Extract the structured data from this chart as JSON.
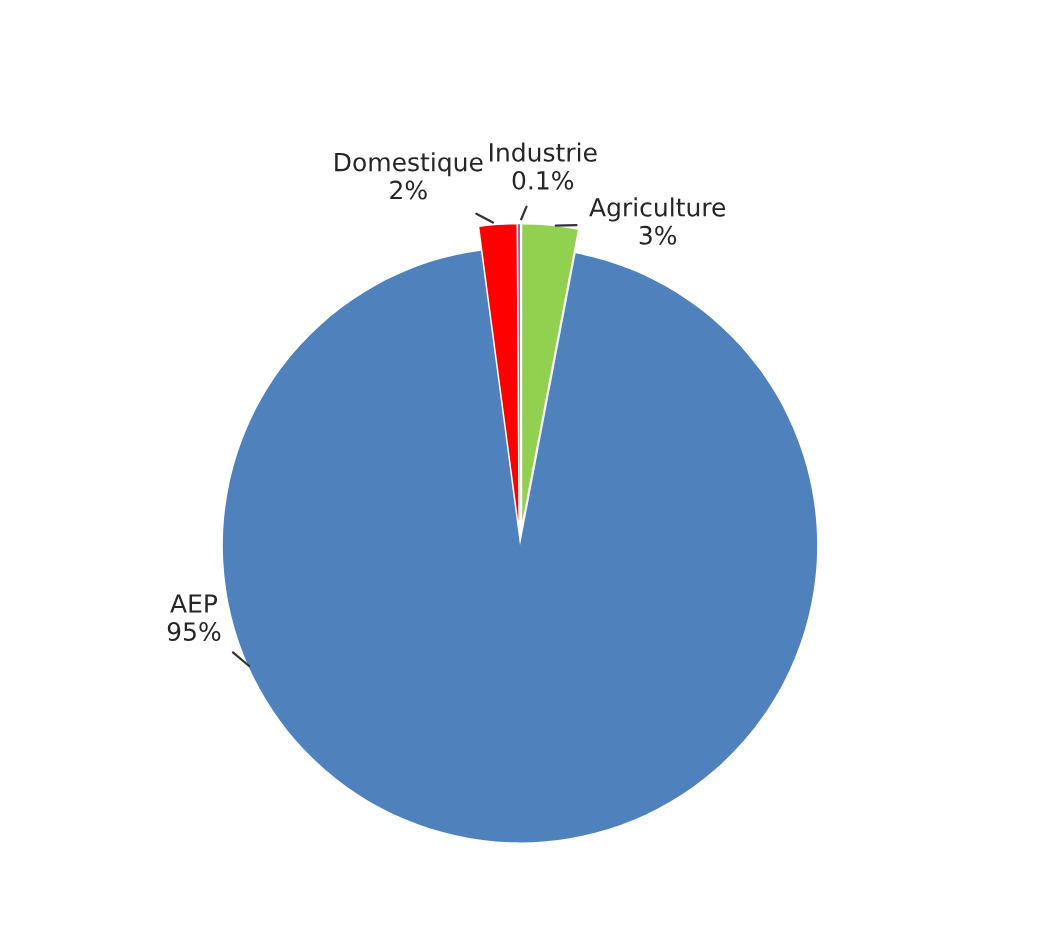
{
  "chart_data": {
    "type": "pie",
    "categories": [
      "Agriculture",
      "AEP",
      "Domestique",
      "Industrie"
    ],
    "values": [
      3,
      95,
      2,
      0.1
    ],
    "value_labels": [
      "3%",
      "95%",
      "2%",
      "0.1%"
    ],
    "colors": [
      "#92d050",
      "#4f81bd",
      "#ff0000",
      "#8064a2"
    ],
    "legend": false
  }
}
